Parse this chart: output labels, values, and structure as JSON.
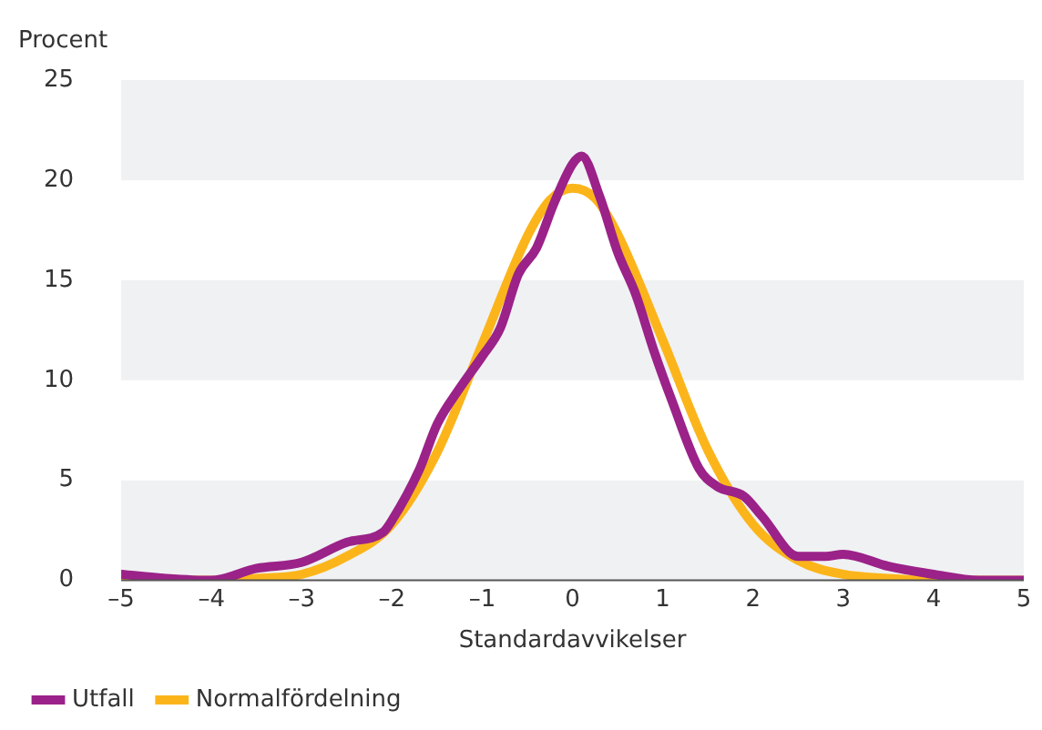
{
  "chart_data": {
    "type": "line",
    "ylabel": "Procent",
    "xlabel": "Standardavvikelser",
    "xlim": [
      -5,
      5
    ],
    "xticks": [
      {
        "value": -5,
        "label": "–5"
      },
      {
        "value": -4,
        "label": "–4"
      },
      {
        "value": -3,
        "label": "–3"
      },
      {
        "value": -2,
        "label": "–2"
      },
      {
        "value": -1,
        "label": "–1"
      },
      0,
      1,
      2,
      3,
      4,
      5
    ],
    "ylim": [
      0,
      25
    ],
    "yticks": [
      0,
      5,
      10,
      15,
      20,
      25
    ],
    "legend": "bottom left",
    "line_style": "solid",
    "bands": [
      {
        "axis": "y",
        "from": 0,
        "to": 5,
        "color": "#f0f1f3"
      },
      {
        "axis": "y",
        "from": 10,
        "to": 15,
        "color": "#f0f1f3"
      },
      {
        "axis": "y",
        "from": 20,
        "to": 25,
        "color": "#f0f1f3"
      }
    ],
    "series": [
      {
        "name": "Utfall",
        "color": "#9b2288",
        "x": [
          -5,
          -4.5,
          -4,
          -3.5,
          -3,
          -2.5,
          -2.1,
          -2,
          -1.7,
          -1.5,
          -1.25,
          -1,
          -0.8,
          -0.6,
          -0.4,
          -0.2,
          0,
          0.1,
          0.3,
          0.5,
          0.7,
          0.9,
          1.1,
          1.4,
          1.6,
          1.9,
          2.1,
          2.5,
          2.8,
          3,
          3.5,
          4,
          4.5,
          5
        ],
        "values": [
          0.3,
          0.1,
          0,
          0.6,
          0.9,
          1.9,
          2.4,
          3,
          5.5,
          7.8,
          9.6,
          11.2,
          12.6,
          15.3,
          16.6,
          18.9,
          20.8,
          21.2,
          19.2,
          16.4,
          14.3,
          11.5,
          9,
          5.6,
          4.7,
          4.2,
          3.2,
          1.2,
          1.2,
          1.3,
          0.7,
          0.3,
          0,
          0
        ]
      },
      {
        "name": "Normalfördelning",
        "color": "#fbb51b",
        "x": [
          -5,
          -4,
          -3.5,
          -3,
          -2.5,
          -2,
          -1.5,
          -1,
          -0.5,
          -0.25,
          0,
          0.25,
          0.5,
          1,
          1.5,
          2,
          2.5,
          3,
          3.5,
          4,
          5
        ],
        "values": [
          0,
          0,
          0.1,
          0.3,
          1.2,
          2.8,
          6.4,
          11.8,
          17.2,
          19,
          19.6,
          19.1,
          17.3,
          12,
          6.5,
          2.8,
          1,
          0.3,
          0.1,
          0,
          0
        ]
      }
    ]
  }
}
